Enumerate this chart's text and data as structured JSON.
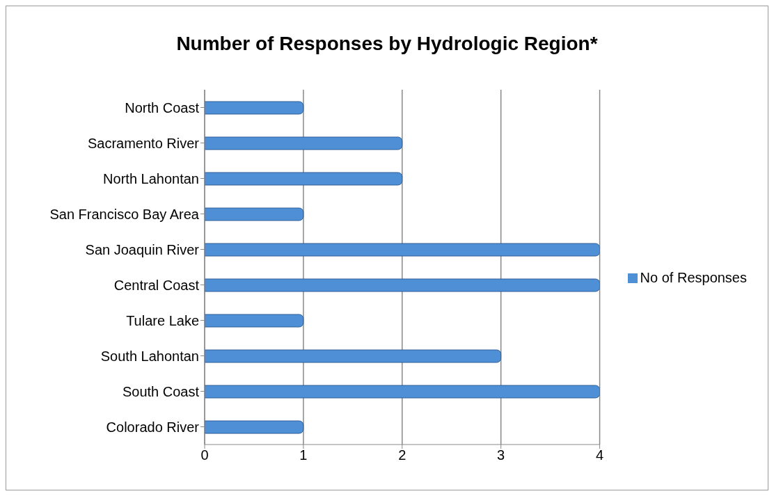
{
  "chart_data": {
    "type": "bar",
    "orientation": "horizontal",
    "title": "Number of Responses by Hydrologic Region*",
    "categories": [
      "North Coast",
      "Sacramento River",
      "North Lahontan",
      "San Francisco Bay Area",
      "San Joaquin River",
      "Central Coast",
      "Tulare Lake",
      "South Lahontan",
      "South Coast",
      "Colorado River"
    ],
    "series": [
      {
        "name": "No of Responses",
        "color": "#4f8fd6",
        "values": [
          1,
          2,
          2,
          1,
          4,
          4,
          1,
          3,
          4,
          1
        ]
      }
    ],
    "xlim": [
      0,
      4
    ],
    "xticks": [
      0,
      1,
      2,
      3,
      4
    ],
    "grid": "x",
    "legend": "right"
  }
}
